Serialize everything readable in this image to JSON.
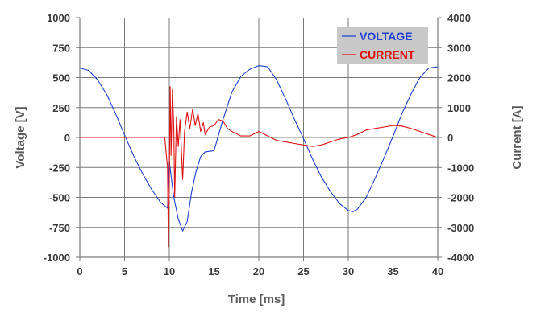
{
  "chart_data": {
    "type": "line",
    "title": "",
    "xlabel": "Time [ms]",
    "ylabel": "Voltage [V]",
    "y2label": "Current [A]",
    "xlim": [
      0,
      40
    ],
    "ylim": [
      -1000,
      1000
    ],
    "y2lim": [
      -4000,
      4000
    ],
    "x_ticks": [
      0,
      5,
      10,
      15,
      20,
      25,
      30,
      35,
      40
    ],
    "y_ticks": [
      1000,
      750,
      500,
      250,
      0,
      -250,
      -500,
      -750,
      -1000
    ],
    "y2_ticks": [
      4000,
      3000,
      2000,
      1000,
      0,
      -1000,
      -2000,
      -3000,
      -4000
    ],
    "grid": true,
    "legend_position": "top-right",
    "series": [
      {
        "name": "VOLTAGE",
        "axis": "left",
        "color": "#1f3fd6",
        "x": [
          0,
          1,
          2,
          3,
          4,
          5,
          6,
          7,
          8,
          9,
          9.8,
          10,
          10.5,
          11,
          11.5,
          12,
          12.5,
          13,
          13.5,
          14,
          15,
          16,
          17,
          18,
          19,
          20,
          21,
          22,
          23,
          24,
          25,
          26,
          27,
          28,
          29,
          30,
          30.5,
          31,
          32,
          33,
          34,
          35,
          36,
          37,
          38,
          39,
          40
        ],
        "y": [
          580,
          560,
          480,
          360,
          200,
          20,
          -150,
          -300,
          -430,
          -540,
          -590,
          -200,
          -500,
          -680,
          -780,
          -700,
          -450,
          -280,
          -160,
          -120,
          -110,
          150,
          380,
          510,
          570,
          600,
          590,
          480,
          320,
          150,
          -10,
          -180,
          -330,
          -450,
          -550,
          -610,
          -620,
          -600,
          -500,
          -340,
          -170,
          10,
          200,
          360,
          500,
          580,
          590
        ]
      },
      {
        "name": "CURRENT",
        "axis": "right",
        "color": "#e01010",
        "x": [
          0,
          2,
          4,
          6,
          8,
          9.5,
          9.8,
          9.9,
          10,
          10.1,
          10.2,
          10.35,
          10.5,
          10.6,
          10.8,
          11,
          11.2,
          11.5,
          11.7,
          12,
          12.3,
          12.6,
          12.9,
          13.2,
          13.5,
          13.8,
          14,
          14.5,
          15,
          15.5,
          16,
          16.5,
          17,
          18,
          19,
          20,
          21,
          22,
          23,
          24,
          25,
          26,
          27,
          28,
          29,
          30,
          31,
          32,
          33,
          34,
          35,
          36,
          37,
          38,
          39,
          40
        ],
        "y": [
          0,
          0,
          0,
          0,
          0,
          0,
          -1000,
          -3650,
          -1500,
          1700,
          -600,
          1600,
          300,
          -2000,
          700,
          -300,
          600,
          -1400,
          200,
          850,
          300,
          950,
          400,
          800,
          200,
          500,
          100,
          350,
          400,
          600,
          550,
          300,
          200,
          50,
          50,
          200,
          50,
          -100,
          -150,
          -200,
          -250,
          -300,
          -250,
          -150,
          -50,
          0,
          100,
          250,
          300,
          350,
          400,
          380,
          300,
          200,
          100,
          0
        ]
      }
    ]
  }
}
